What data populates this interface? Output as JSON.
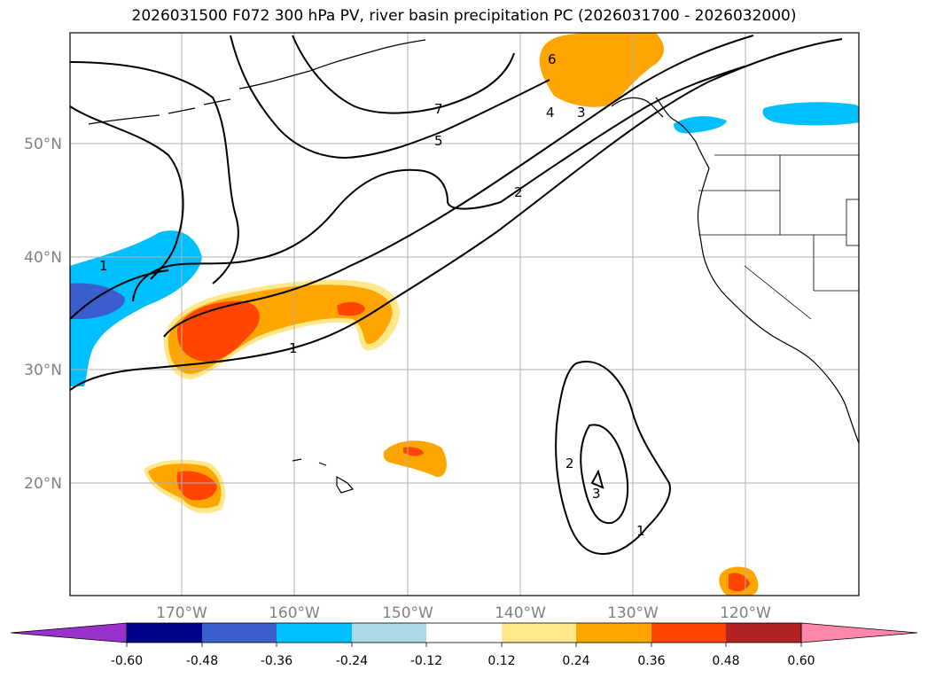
{
  "title": "2026031500 F072 300 hPa PV, river basin precipitation PC (2026031700 - 2026032000)",
  "lat_labels": [
    "50°N",
    "40°N",
    "30°N",
    "20°N"
  ],
  "lon_labels": [
    "170°W",
    "160°W",
    "150°W",
    "140°W",
    "130°W",
    "120°W"
  ],
  "colorbar": {
    "ticks": [
      "-0.60",
      "-0.48",
      "-0.36",
      "-0.24",
      "-0.12",
      "0.12",
      "0.24",
      "0.36",
      "0.48",
      "0.60"
    ],
    "colors": [
      "#9932cc",
      "#00008b",
      "#3a5fcd",
      "#00bfff",
      "#add8e6",
      "#ffffff",
      "#ffe78a",
      "#ffa500",
      "#ff4500",
      "#b22222",
      "#ff88aa"
    ]
  },
  "contour_labels": [
    "1",
    "1",
    "2",
    "3",
    "4",
    "5",
    "6",
    "7",
    "1",
    "2",
    "3"
  ]
}
